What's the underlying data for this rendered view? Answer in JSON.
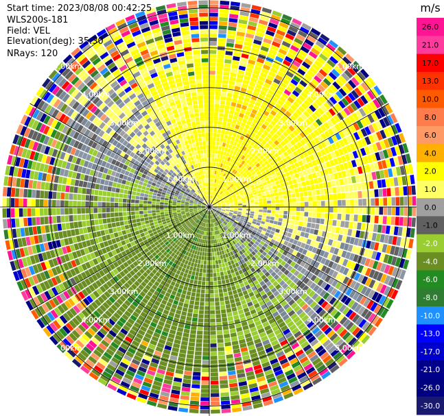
{
  "info": {
    "start_time": "Start time: 2023/08/08 00:42:25",
    "instrument": "WLS200s-181",
    "field": "Field: VEL",
    "elevation": "Elevation(deg): 35.30",
    "nrays": "NRays: 120"
  },
  "chart_data": {
    "type": "heatmap",
    "projection": "polar PPI",
    "title": "",
    "colorbar_label": "m/s",
    "colorbar_ticks": [
      "26.0",
      "21.0",
      "17.0",
      "13.0",
      "10.0",
      "8.0",
      "6.0",
      "4.0",
      "2.0",
      "1.0",
      "0.0",
      "-1.0",
      "-2.0",
      "-4.0",
      "-6.0",
      "-8.0",
      "-10.0",
      "-13.0",
      "-17.0",
      "-21.0",
      "-26.0",
      "-30.0"
    ],
    "colorbar_colors": [
      "#ff1493",
      "#ff3c9e",
      "#ff0000",
      "#ff3300",
      "#ff5a00",
      "#ff7c4d",
      "#ff9966",
      "#ffb000",
      "#ffff00",
      "#ffff66",
      "#a0a0a0",
      "#606060",
      "#9acd32",
      "#6b8e23",
      "#228b22",
      "#2e7d32",
      "#1e90ff",
      "#0000ff",
      "#0000cd",
      "#00008b",
      "#000080",
      "#191970"
    ],
    "range_rings_km": [
      1,
      2,
      3,
      4,
      5
    ],
    "ring_labels": [
      "1.00km",
      "2.00km",
      "3.00km",
      "4.00km",
      "5.00km"
    ],
    "max_range_km": 5.2,
    "n_rays": 120,
    "n_gates": 50
  }
}
